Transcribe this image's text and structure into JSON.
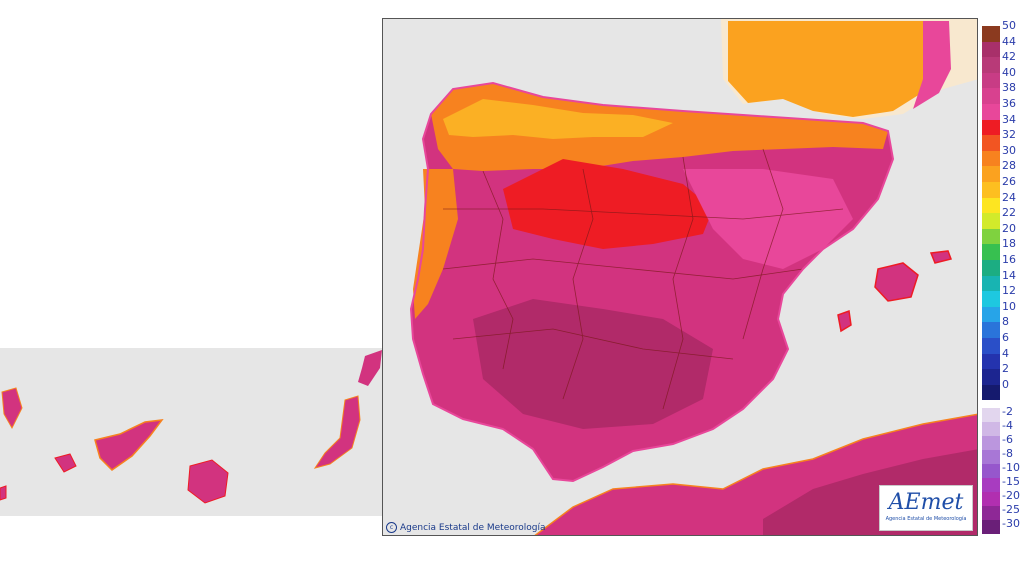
{
  "credit_text": "Agencia Estatal de Meteorología",
  "logo": {
    "brand": "AEmet",
    "subtitle": "Agencia Estatal de Meteorología"
  },
  "legend": {
    "positive": [
      {
        "label": "50",
        "color": "#8b3a1f"
      },
      {
        "label": "44",
        "color": "#a8306a"
      },
      {
        "label": "42",
        "color": "#b83a78"
      },
      {
        "label": "40",
        "color": "#c83c85"
      },
      {
        "label": "38",
        "color": "#d8418f"
      },
      {
        "label": "36",
        "color": "#e8479a"
      },
      {
        "label": "34",
        "color": "#ee1c24"
      },
      {
        "label": "32",
        "color": "#f25522"
      },
      {
        "label": "30",
        "color": "#f7821f"
      },
      {
        "label": "28",
        "color": "#fba21f"
      },
      {
        "label": "26",
        "color": "#fdbf20"
      },
      {
        "label": "24",
        "color": "#fde521"
      },
      {
        "label": "22",
        "color": "#d2ea2b"
      },
      {
        "label": "20",
        "color": "#7fd23f"
      },
      {
        "label": "18",
        "color": "#37c050"
      },
      {
        "label": "16",
        "color": "#1cad82"
      },
      {
        "label": "14",
        "color": "#18b4b2"
      },
      {
        "label": "12",
        "color": "#1ec8e0"
      },
      {
        "label": "10",
        "color": "#27a4e8"
      },
      {
        "label": "8",
        "color": "#2a74da"
      },
      {
        "label": "6",
        "color": "#2a4fc8"
      },
      {
        "label": "4",
        "color": "#2433ae"
      },
      {
        "label": "2",
        "color": "#1c2590"
      },
      {
        "label": "0",
        "color": "#151a6e"
      }
    ],
    "negative": [
      {
        "label": "-2",
        "color": "#e2d6ee"
      },
      {
        "label": "-4",
        "color": "#d0b8e6"
      },
      {
        "label": "-6",
        "color": "#bb96de"
      },
      {
        "label": "-8",
        "color": "#a877d6"
      },
      {
        "label": "-10",
        "color": "#9657cc"
      },
      {
        "label": "-15",
        "color": "#a83cc0"
      },
      {
        "label": "-20",
        "color": "#b12fb0"
      },
      {
        "label": "-25",
        "color": "#8e2896"
      },
      {
        "label": "-30",
        "color": "#6a1f78"
      }
    ]
  },
  "colors": {
    "sea": "#e6e6e6",
    "land_outside": "#f8e8cf",
    "hot_base": "#d2337f",
    "very_hot": "#b12a69",
    "hot": "#e8479a",
    "red_zone": "#ee1c24",
    "orange": "#f7821f",
    "yellow_orange": "#fbb024",
    "border_lines": "#7a1818"
  }
}
